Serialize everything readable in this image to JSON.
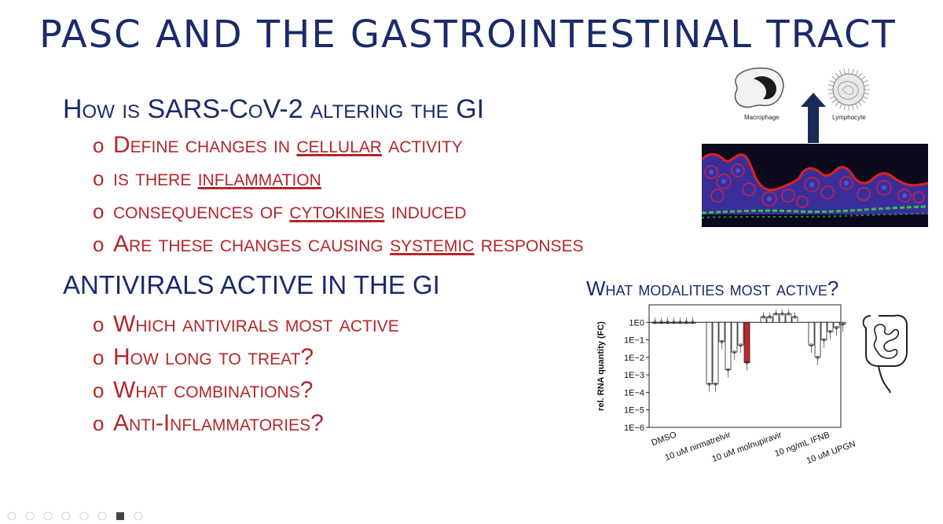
{
  "slide": {
    "title": "PASC AND THE GASTROINTESTINAL TRACT",
    "section1": {
      "heading": "How is SARS-CoV-2 altering the GI",
      "bullets": [
        {
          "pre": "Define changes in ",
          "u": "cellular",
          "post": " activity"
        },
        {
          "pre": "is there ",
          "u": "inflammation",
          "post": ""
        },
        {
          "pre": "consequences of ",
          "u": "cytokines",
          "post": " induced"
        },
        {
          "pre": "Are these changes causing ",
          "u": "systemic",
          "post": " responses"
        }
      ]
    },
    "section2": {
      "heading": "ANTIVIRALS ACTIVE IN THE GI",
      "bullets": [
        "Which antivirals most active",
        "How long to treat?",
        "What combinations?",
        "Anti-Inflammatories?"
      ]
    },
    "bullet_marker": "o",
    "figure": {
      "macrophage_label": "Macrophage",
      "lymphocyte_label": "Lymphocyte",
      "chart_heading": "What modalities most active?"
    }
  },
  "colors": {
    "title_navy": "#1b2a6b",
    "bullet_red": "#b5262a",
    "bar_red": "#c0282d",
    "bar_blue": "#2e6da4",
    "arrow_navy": "#1b2a55"
  },
  "chart_data": {
    "type": "bar",
    "ylabel": "rel. RNA quantity (FC)",
    "yscale": "log",
    "ylim": [
      1e-06,
      10
    ],
    "yticks": [
      "1E−6",
      "1E−5",
      "1E−4",
      "1E−3",
      "1E−2",
      "1E−1",
      "1E0"
    ],
    "xlabels": [
      "DMSO",
      "10 uM nirmatrelvir",
      "10 uM molnupiravir",
      "10 ng/mL IFNB",
      "10 uM UPGNUC670"
    ],
    "groups": [
      {
        "name": "DMSO",
        "values": [
          1,
          1,
          1,
          1,
          1,
          1,
          1
        ],
        "colors": [
          "w",
          "w",
          "w",
          "w",
          "w",
          "w",
          "w"
        ]
      },
      {
        "name": "10 uM nirmatrelvir",
        "values": [
          0.0003,
          0.0003,
          0.08,
          0.002,
          0.02,
          0.05,
          0.005
        ],
        "colors": [
          "w",
          "w",
          "w",
          "w",
          "w",
          "w",
          "red"
        ]
      },
      {
        "name": "10 uM molnupiravir",
        "values": [
          2,
          2,
          3,
          3,
          3,
          2
        ],
        "colors": [
          "w",
          "w",
          "w",
          "w",
          "w",
          "w"
        ]
      },
      {
        "name": "10 ng/mL IFNB",
        "values": [
          0.05,
          0.01,
          0.1,
          0.3,
          0.5,
          0.8
        ],
        "colors": [
          "w",
          "w",
          "w",
          "w",
          "w",
          "w"
        ]
      },
      {
        "name": "10 uM UPGNUC670",
        "values": [
          0.0003,
          3e-05,
          0.0001,
          0.0003,
          8e-05,
          0.001,
          0.0001
        ],
        "colors": [
          "w",
          "w",
          "w",
          "w",
          "w",
          "w",
          "blue"
        ]
      }
    ]
  }
}
